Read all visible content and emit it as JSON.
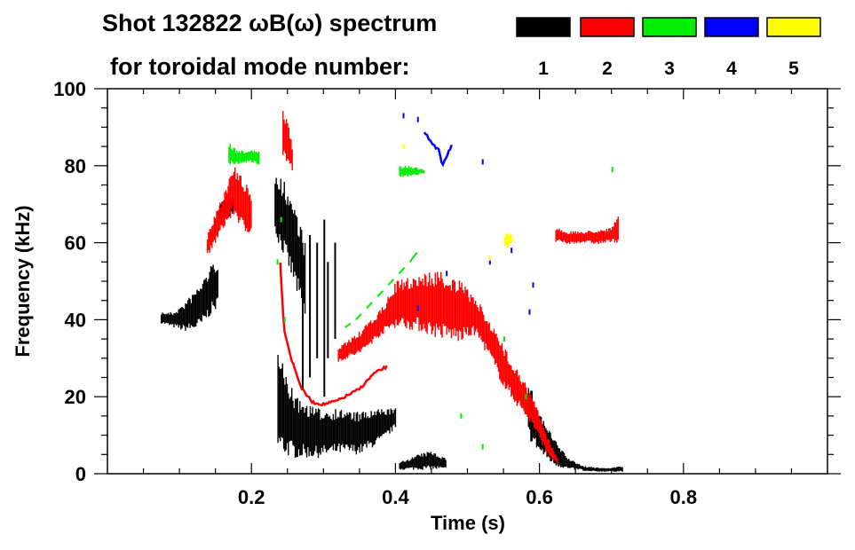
{
  "chart_data": {
    "type": "heatmap",
    "title": "Shot 132822 ωB(ω) spectrum",
    "subtitle": "for toroidal mode number:",
    "xlabel": "Time (s)",
    "ylabel": "Frequency (kHz)",
    "xlim": [
      0,
      1.0
    ],
    "ylim": [
      0,
      100
    ],
    "xticks": [
      0.2,
      0.4,
      0.6,
      0.8
    ],
    "xtick_labels": [
      "0.2",
      "0.4",
      "0.6",
      "0.8"
    ],
    "x_minor_step": 0.05,
    "yticks": [
      0,
      20,
      40,
      60,
      80,
      100
    ],
    "ytick_labels": [
      "0",
      "20",
      "40",
      "60",
      "80",
      "100"
    ],
    "y_minor_step": 5,
    "grid": false,
    "legend_placement": "top-right",
    "series": [
      {
        "name": "1",
        "color": "#000000",
        "features": [
          {
            "kind": "band",
            "t": [
              0.074,
              0.09,
              0.104,
              0.118,
              0.13,
              0.142,
              0.153
            ],
            "lo": [
              39,
              38,
              37,
              37,
              38,
              41,
              43
            ],
            "hi": [
              42,
              42,
              44,
              47,
              50,
              54,
              56
            ]
          },
          {
            "kind": "band",
            "t": [
              0.155,
              0.165,
              0.175
            ],
            "lo": [
              65,
              66,
              68
            ],
            "hi": [
              70,
              72,
              73
            ]
          },
          {
            "kind": "band",
            "t": [
              0.232,
              0.245,
              0.26,
              0.275
            ],
            "lo": [
              62,
              56,
              48,
              38
            ],
            "hi": [
              78,
              76,
              70,
              60
            ]
          },
          {
            "kind": "band",
            "t": [
              0.236,
              0.26,
              0.29,
              0.32,
              0.35,
              0.38,
              0.4
            ],
            "lo": [
              5,
              4,
              4,
              5,
              5,
              8,
              12
            ],
            "hi": [
              32,
              20,
              17,
              17,
              16,
              17,
              17
            ]
          },
          {
            "kind": "streaks",
            "t": [
              0.27,
              0.28,
              0.29,
              0.3,
              0.305,
              0.315
            ],
            "lo": [
              22,
              25,
              30,
              20,
              30,
              35
            ],
            "hi": [
              55,
              62,
              60,
              66,
              55,
              60
            ]
          },
          {
            "kind": "band",
            "t": [
              0.405,
              0.43,
              0.45,
              0.47
            ],
            "lo": [
              1,
              1,
              1,
              1
            ],
            "hi": [
              3,
              5,
              6,
              4
            ]
          },
          {
            "kind": "band",
            "t": [
              0.584,
              0.6,
              0.62,
              0.64,
              0.66
            ],
            "lo": [
              9,
              5,
              2,
              1,
              1
            ],
            "hi": [
              24,
              16,
              9,
              4,
              2
            ]
          },
          {
            "kind": "band",
            "t": [
              0.66,
              0.69,
              0.715
            ],
            "lo": [
              0.5,
              0.5,
              0.5
            ],
            "hi": [
              2,
              1.5,
              2
            ]
          }
        ]
      },
      {
        "name": "2",
        "color": "#ff0000",
        "features": [
          {
            "kind": "band",
            "t": [
              0.138,
              0.15,
              0.162,
              0.175,
              0.19,
              0.2
            ],
            "lo": [
              56,
              60,
              64,
              67,
              62,
              63
            ],
            "hi": [
              62,
              68,
              74,
              80,
              76,
              72
            ]
          },
          {
            "kind": "band",
            "t": [
              0.243,
              0.25,
              0.256
            ],
            "lo": [
              82,
              80,
              78
            ],
            "hi": [
              95,
              92,
              86
            ]
          },
          {
            "kind": "line",
            "t": [
              0.24,
              0.245,
              0.255,
              0.27,
              0.285,
              0.3,
              0.32,
              0.35,
              0.37,
              0.39
            ],
            "f": [
              55,
              38,
              30,
              22,
              18.5,
              18,
              19,
              22,
              26,
              28
            ]
          },
          {
            "kind": "band",
            "t": [
              0.32,
              0.35,
              0.38,
              0.4,
              0.43,
              0.46,
              0.49,
              0.51,
              0.53,
              0.55,
              0.57,
              0.59,
              0.61,
              0.625
            ],
            "lo": [
              29,
              31,
              36,
              38,
              37,
              35,
              34,
              36,
              30,
              22,
              17,
              12,
              5,
              2
            ],
            "hi": [
              33,
              37,
              43,
              50,
              52,
              53,
              50,
              46,
              40,
              33,
              27,
              20,
              10,
              4
            ]
          },
          {
            "kind": "band",
            "t": [
              0.622,
              0.64,
              0.66,
              0.68,
              0.7,
              0.71
            ],
            "lo": [
              60,
              59.5,
              60,
              59.5,
              60,
              60
            ],
            "hi": [
              64,
              63,
              63,
              63.5,
              64,
              68
            ]
          }
        ]
      },
      {
        "name": "3",
        "color": "#00ee00",
        "features": [
          {
            "kind": "band",
            "t": [
              0.168,
              0.18,
              0.195,
              0.21
            ],
            "lo": [
              80,
              80,
              81,
              80
            ],
            "hi": [
              86,
              84,
              84,
              84
            ]
          },
          {
            "kind": "band",
            "t": [
              0.405,
              0.42,
              0.44
            ],
            "lo": [
              77,
              77,
              78
            ],
            "hi": [
              80,
              80,
              79
            ]
          },
          {
            "kind": "dashes",
            "t": [
              0.33,
              0.345,
              0.36,
              0.375,
              0.39,
              0.405,
              0.42,
              0.44
            ],
            "f": [
              38,
              40,
              43,
              46,
              49,
              52,
              55,
              60
            ]
          },
          {
            "kind": "dots",
            "points": [
              [
                0.24,
                66
              ],
              [
                0.235,
                55
              ],
              [
                0.245,
                40
              ],
              [
                0.49,
                15
              ],
              [
                0.52,
                7
              ],
              [
                0.55,
                35
              ],
              [
                0.58,
                20
              ],
              [
                0.7,
                79
              ]
            ]
          }
        ]
      },
      {
        "name": "4",
        "color": "#0000ff",
        "features": [
          {
            "kind": "line",
            "t": [
              0.44,
              0.45,
              0.46,
              0.465,
              0.47,
              0.475,
              0.48
            ],
            "f": [
              89,
              86,
              84,
              80,
              82,
              84,
              86
            ]
          },
          {
            "kind": "dots",
            "points": [
              [
                0.41,
                93
              ],
              [
                0.43,
                92
              ],
              [
                0.52,
                81
              ],
              [
                0.53,
                55
              ],
              [
                0.56,
                58
              ],
              [
                0.585,
                42
              ],
              [
                0.59,
                49
              ],
              [
                0.43,
                43
              ],
              [
                0.47,
                52
              ]
            ]
          }
        ]
      },
      {
        "name": "5",
        "color": "#ffff00",
        "features": [
          {
            "kind": "band",
            "t": [
              0.551,
              0.556,
              0.561
            ],
            "lo": [
              59,
              58.5,
              60
            ],
            "hi": [
              62,
              63,
              62
            ]
          },
          {
            "kind": "dots",
            "points": [
              [
                0.41,
                85
              ],
              [
                0.53,
                56
              ]
            ]
          }
        ]
      }
    ]
  }
}
